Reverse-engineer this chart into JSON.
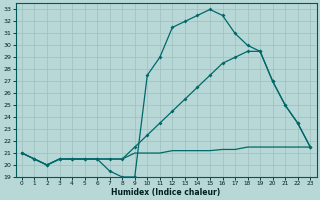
{
  "title": "",
  "xlabel": "Humidex (Indice chaleur)",
  "ylabel": "",
  "bg_color": "#b8d8d8",
  "grid_color": "#a0c8c8",
  "line_color": "#006868",
  "ylim": [
    19,
    33.5
  ],
  "xlim": [
    -0.5,
    23.5
  ],
  "yticks": [
    19,
    20,
    21,
    22,
    23,
    24,
    25,
    26,
    27,
    28,
    29,
    30,
    31,
    32,
    33
  ],
  "xticks": [
    0,
    1,
    2,
    3,
    4,
    5,
    6,
    7,
    8,
    9,
    10,
    11,
    12,
    13,
    14,
    15,
    16,
    17,
    18,
    19,
    20,
    21,
    22,
    23
  ],
  "line1_x": [
    0,
    1,
    2,
    3,
    4,
    5,
    6,
    7,
    8,
    9,
    10,
    11,
    12,
    13,
    14,
    15,
    16,
    17,
    18,
    19,
    20,
    21,
    22,
    23
  ],
  "line1_y": [
    21.0,
    20.5,
    20.0,
    20.5,
    20.5,
    20.5,
    20.5,
    19.5,
    19.0,
    19.0,
    27.5,
    29.0,
    31.5,
    32.0,
    32.5,
    33.0,
    32.5,
    31.0,
    30.0,
    29.5,
    27.0,
    25.0,
    23.5,
    21.5
  ],
  "line2_x": [
    0,
    1,
    2,
    3,
    4,
    5,
    6,
    7,
    8,
    9,
    10,
    11,
    12,
    13,
    14,
    15,
    16,
    17,
    18,
    19,
    20,
    21,
    22,
    23
  ],
  "line2_y": [
    21.0,
    20.5,
    20.0,
    20.5,
    20.5,
    20.5,
    20.5,
    20.5,
    20.5,
    21.5,
    22.5,
    23.5,
    24.5,
    25.5,
    26.5,
    27.5,
    28.5,
    29.0,
    29.5,
    29.5,
    27.0,
    25.0,
    23.5,
    21.5
  ],
  "line3_x": [
    0,
    1,
    2,
    3,
    4,
    5,
    6,
    7,
    8,
    9,
    10,
    11,
    12,
    13,
    14,
    15,
    16,
    17,
    18,
    19,
    20,
    21,
    22,
    23
  ],
  "line3_y": [
    21.0,
    20.5,
    20.0,
    20.5,
    20.5,
    20.5,
    20.5,
    20.5,
    20.5,
    21.0,
    21.0,
    21.0,
    21.2,
    21.2,
    21.2,
    21.2,
    21.3,
    21.3,
    21.5,
    21.5,
    21.5,
    21.5,
    21.5,
    21.5
  ]
}
